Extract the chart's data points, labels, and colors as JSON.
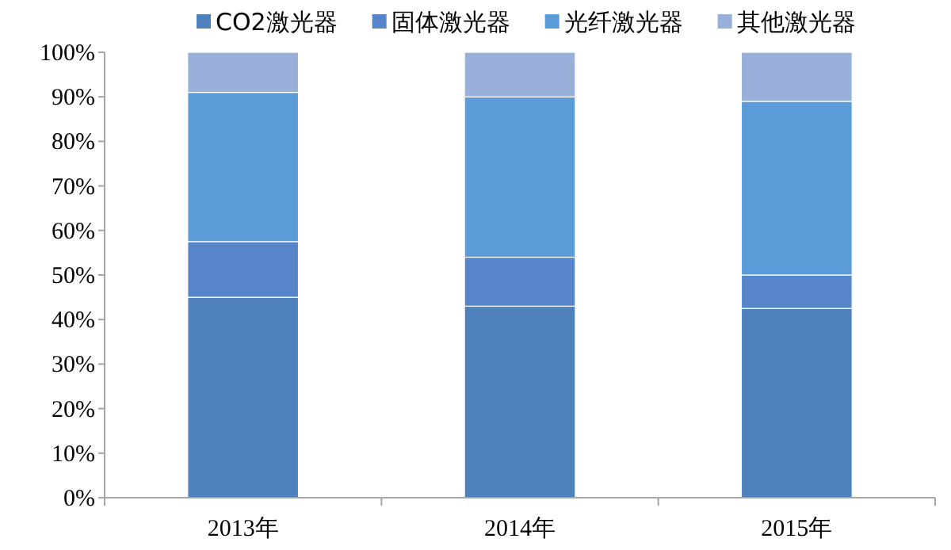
{
  "chart_data": {
    "type": "bar",
    "stacked": true,
    "categories": [
      "2013年",
      "2014年",
      "2015年"
    ],
    "series": [
      {
        "name": "CO2激光器",
        "color": "#4f81bd",
        "values": [
          45,
          43,
          42.5
        ]
      },
      {
        "name": "固体激光器",
        "color": "#5686c9",
        "values": [
          12.5,
          11,
          7.5
        ]
      },
      {
        "name": "光纤激光器",
        "color": "#5b9bd8",
        "values": [
          33.5,
          36,
          39
        ]
      },
      {
        "name": "其他激光器",
        "color": "#97afd9",
        "values": [
          9,
          10,
          11
        ]
      }
    ],
    "ylim": [
      0,
      100
    ],
    "yticks": [
      {
        "value": 0,
        "label": "0%"
      },
      {
        "value": 10,
        "label": "10%"
      },
      {
        "value": 20,
        "label": "20%"
      },
      {
        "value": 30,
        "label": "30%"
      },
      {
        "value": 40,
        "label": "40%"
      },
      {
        "value": 50,
        "label": "50%"
      },
      {
        "value": 60,
        "label": "60%"
      },
      {
        "value": 70,
        "label": "70%"
      },
      {
        "value": 80,
        "label": "80%"
      },
      {
        "value": 90,
        "label": "90%"
      },
      {
        "value": 100,
        "label": "100%"
      }
    ],
    "grid": false,
    "legend": "top"
  }
}
